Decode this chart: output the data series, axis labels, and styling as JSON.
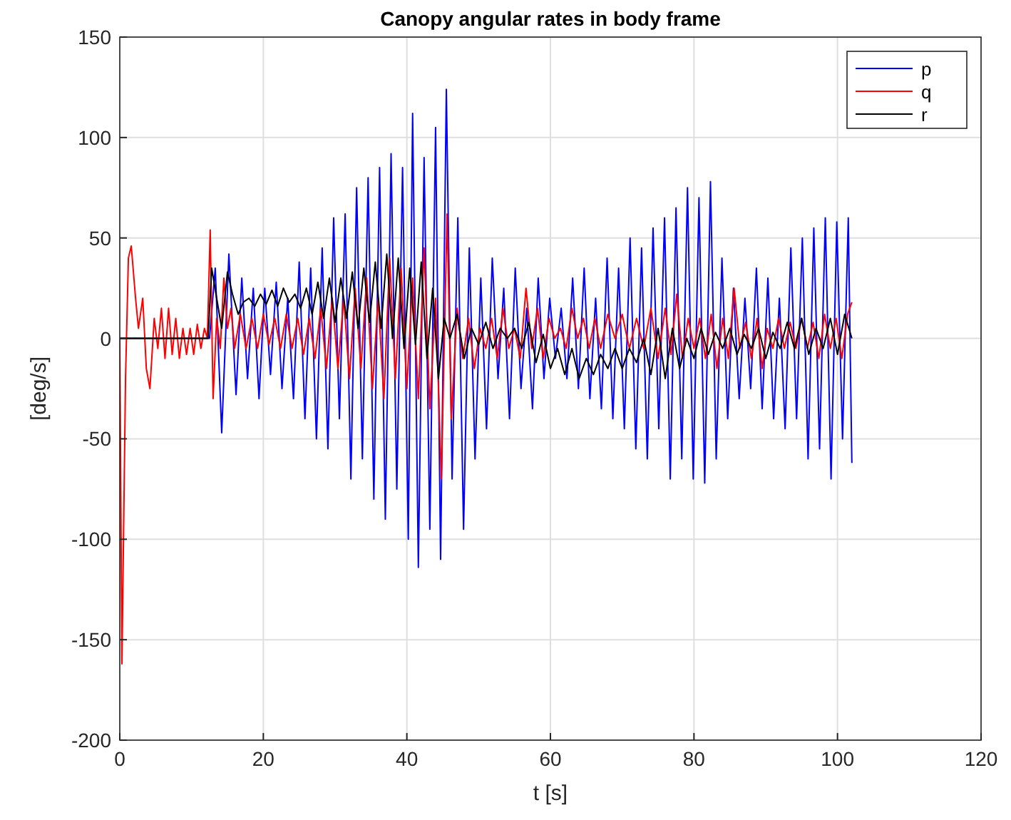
{
  "chart_data": {
    "type": "line",
    "title": "Canopy angular rates in body frame",
    "xlabel": "t [s]",
    "ylabel": "[deg/s]",
    "xlim": [
      0,
      120
    ],
    "xticks": [
      0,
      20,
      40,
      60,
      80,
      100,
      120
    ],
    "ylim": [
      -200,
      150
    ],
    "yticks": [
      -200,
      -150,
      -100,
      -50,
      0,
      50,
      100,
      150
    ],
    "grid": true,
    "legend": "top right",
    "line_style": "solid",
    "series": [
      {
        "name": "p",
        "color": "#0000ff",
        "x": [
          0,
          12.5,
          13.3,
          14.2,
          15.2,
          16.2,
          17.0,
          17.8,
          18.6,
          19.4,
          20.2,
          21.0,
          21.8,
          22.6,
          23.4,
          24.2,
          25.0,
          25.8,
          26.6,
          27.4,
          28.2,
          29.0,
          29.8,
          30.6,
          31.4,
          32.2,
          33.0,
          33.8,
          34.6,
          35.4,
          36.2,
          37.0,
          37.8,
          38.6,
          39.4,
          40.2,
          40.8,
          41.6,
          42.4,
          43.2,
          44.0,
          44.7,
          45.5,
          46.3,
          47.1,
          47.9,
          48.7,
          49.5,
          50.3,
          51.1,
          51.9,
          52.7,
          53.5,
          54.3,
          55.1,
          55.9,
          56.7,
          57.5,
          58.3,
          59.1,
          59.9,
          60.7,
          61.5,
          62.3,
          63.1,
          63.9,
          64.7,
          65.5,
          66.3,
          67.1,
          67.9,
          68.7,
          69.5,
          70.3,
          71.1,
          71.9,
          72.7,
          73.5,
          74.3,
          75.1,
          75.9,
          76.7,
          77.5,
          78.3,
          79.1,
          79.9,
          80.7,
          81.5,
          82.3,
          83.1,
          83.9,
          84.7,
          85.5,
          86.3,
          87.1,
          87.9,
          88.7,
          89.5,
          90.3,
          91.1,
          91.9,
          92.7,
          93.5,
          94.3,
          95.1,
          95.9,
          96.7,
          97.5,
          98.3,
          99.1,
          99.9,
          100.7,
          101.5,
          102.0
        ],
        "values": [
          0,
          0,
          35,
          -47,
          42,
          -28,
          30,
          -20,
          25,
          -30,
          25,
          -18,
          28,
          -25,
          20,
          -30,
          38,
          -40,
          35,
          -50,
          45,
          -55,
          60,
          -40,
          62,
          -70,
          75,
          -60,
          80,
          -80,
          85,
          -90,
          92,
          -75,
          85,
          -100,
          112,
          -114,
          90,
          -95,
          105,
          -110,
          124,
          -70,
          60,
          -95,
          45,
          -60,
          30,
          -45,
          40,
          -20,
          25,
          -40,
          35,
          -25,
          15,
          -35,
          30,
          -20,
          20,
          -10,
          15,
          -20,
          30,
          -25,
          35,
          -30,
          20,
          -35,
          40,
          -40,
          35,
          -45,
          50,
          -55,
          45,
          -60,
          55,
          -45,
          60,
          -70,
          65,
          -60,
          75,
          -70,
          70,
          -72,
          78,
          -60,
          40,
          -40,
          25,
          -30,
          20,
          -25,
          35,
          -35,
          30,
          -40,
          20,
          -45,
          45,
          -40,
          50,
          -60,
          55,
          -55,
          60,
          -70,
          58,
          -50,
          60,
          -62
        ]
      },
      {
        "name": "q",
        "color": "#ff0000",
        "x": [
          0,
          0.3,
          0.8,
          1.2,
          1.6,
          2.2,
          2.6,
          3.2,
          3.7,
          4.2,
          4.8,
          5.3,
          5.8,
          6.3,
          6.8,
          7.3,
          7.8,
          8.3,
          8.8,
          9.3,
          9.8,
          10.3,
          10.8,
          11.3,
          11.8,
          12.2,
          12.6,
          13.0,
          13.5,
          14.0,
          14.5,
          15.0,
          15.5,
          16.0,
          16.8,
          17.6,
          18.4,
          19.2,
          20.0,
          20.8,
          21.6,
          22.4,
          23.2,
          24.0,
          24.8,
          25.6,
          26.4,
          27.2,
          28.0,
          28.8,
          29.6,
          30.4,
          31.2,
          32.0,
          32.8,
          33.6,
          34.4,
          35.2,
          36.0,
          36.8,
          37.6,
          38.4,
          39.2,
          40.0,
          40.8,
          41.6,
          42.4,
          43.2,
          44.0,
          44.8,
          45.6,
          46.2,
          47.0,
          47.8,
          48.6,
          49.4,
          50.2,
          51.0,
          51.8,
          52.6,
          53.4,
          54.2,
          55.0,
          55.8,
          56.6,
          57.4,
          58.2,
          59.0,
          59.8,
          60.6,
          61.4,
          62.2,
          63.0,
          63.8,
          64.6,
          65.4,
          66.2,
          67.0,
          68.0,
          69.0,
          70.0,
          71.0,
          72.0,
          73.0,
          74.0,
          75.0,
          76.0,
          76.8,
          77.6,
          78.4,
          79.2,
          80.0,
          80.8,
          81.6,
          82.4,
          83.2,
          84.0,
          84.8,
          85.6,
          86.4,
          87.2,
          88.0,
          88.8,
          89.5,
          90.2,
          91.0,
          91.8,
          92.6,
          93.4,
          94.2,
          95.0,
          95.8,
          96.6,
          97.4,
          98.2,
          99.0,
          99.8,
          100.6,
          101.4,
          102.0
        ],
        "values": [
          0,
          -162,
          -20,
          40,
          46,
          20,
          5,
          20,
          -15,
          -25,
          10,
          -5,
          15,
          -10,
          15,
          -8,
          10,
          -10,
          5,
          -8,
          5,
          -8,
          7,
          -5,
          5,
          0,
          54,
          -30,
          10,
          -5,
          30,
          5,
          15,
          -5,
          12,
          -5,
          10,
          -5,
          12,
          -3,
          10,
          -5,
          12,
          -5,
          10,
          -8,
          10,
          -10,
          15,
          -15,
          20,
          -15,
          20,
          -20,
          25,
          -15,
          30,
          -25,
          20,
          -30,
          40,
          -20,
          35,
          -25,
          30,
          -30,
          45,
          -35,
          20,
          -70,
          62,
          -40,
          15,
          -10,
          10,
          -15,
          5,
          -5,
          10,
          -10,
          15,
          -5,
          5,
          -10,
          25,
          -5,
          15,
          -10,
          10,
          0,
          5,
          -5,
          15,
          0,
          10,
          -5,
          10,
          -5,
          12,
          0,
          12,
          -5,
          10,
          -5,
          15,
          -10,
          15,
          -8,
          22,
          -10,
          10,
          -5,
          10,
          -10,
          12,
          -15,
          10,
          -10,
          25,
          -5,
          8,
          -10,
          10,
          -15,
          5,
          -5,
          10,
          -5,
          8,
          -5,
          10,
          -5,
          8,
          -10,
          12,
          -5,
          10,
          -10,
          12,
          18
        ]
      },
      {
        "name": "r",
        "color": "#000000",
        "x": [
          0,
          12.3,
          12.8,
          13.5,
          14.2,
          15.0,
          15.7,
          16.5,
          17.2,
          18.0,
          18.8,
          19.6,
          20.4,
          21.2,
          22.0,
          22.8,
          23.6,
          24.4,
          25.2,
          26.0,
          26.8,
          27.6,
          28.4,
          29.2,
          30.0,
          30.8,
          31.6,
          32.4,
          33.2,
          34.0,
          34.8,
          35.6,
          36.4,
          37.2,
          38.0,
          38.8,
          39.6,
          40.4,
          41.2,
          42.0,
          42.8,
          43.6,
          44.4,
          45.2,
          46.0,
          47.0,
          48.0,
          49.0,
          50.0,
          51.0,
          52.0,
          53.0,
          54.0,
          55.0,
          56.0,
          57.0,
          58.0,
          59.0,
          60.0,
          61.0,
          62.0,
          63.0,
          64.0,
          65.0,
          66.0,
          67.0,
          68.0,
          69.0,
          70.0,
          71.0,
          72.0,
          73.0,
          74.0,
          75.0,
          76.0,
          77.0,
          78.0,
          79.0,
          80.0,
          81.0,
          82.0,
          83.0,
          84.0,
          85.0,
          86.0,
          87.0,
          88.0,
          89.0,
          90.0,
          91.0,
          92.0,
          93.0,
          94.0,
          95.0,
          96.0,
          97.0,
          98.0,
          99.0,
          100.0,
          101.0,
          102.0
        ],
        "values": [
          0,
          0,
          35,
          20,
          5,
          33,
          22,
          12,
          18,
          20,
          16,
          22,
          17,
          24,
          16,
          25,
          18,
          22,
          15,
          25,
          12,
          28,
          10,
          30,
          8,
          30,
          10,
          33,
          5,
          35,
          8,
          38,
          5,
          42,
          0,
          40,
          -5,
          35,
          -3,
          38,
          -10,
          25,
          -20,
          10,
          0,
          12,
          -10,
          5,
          -3,
          8,
          -5,
          5,
          0,
          5,
          -5,
          8,
          -12,
          2,
          -15,
          -5,
          -18,
          -5,
          -20,
          -10,
          -18,
          -8,
          -15,
          -5,
          -15,
          -5,
          -12,
          0,
          -18,
          5,
          -20,
          5,
          -15,
          0,
          -10,
          5,
          -8,
          3,
          -5,
          5,
          -8,
          2,
          -5,
          5,
          -10,
          3,
          -5,
          8,
          -5,
          10,
          -8,
          5,
          -5,
          10,
          -8,
          12,
          0
        ]
      }
    ]
  }
}
